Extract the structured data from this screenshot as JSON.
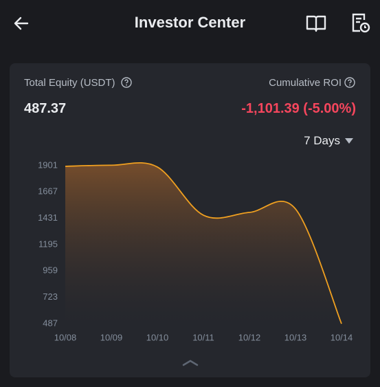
{
  "header": {
    "title": "Investor Center"
  },
  "summary": {
    "equity_label": "Total Equity (USDT)",
    "equity_value": "487.37",
    "roi_label": "Cumulative ROI",
    "roi_value": "-1,101.39 (-5.00%)",
    "period": "7 Days"
  },
  "chart_data": {
    "type": "line",
    "categories": [
      "10/08",
      "10/09",
      "10/10",
      "10/11",
      "10/12",
      "10/13",
      "10/14"
    ],
    "values": [
      1895,
      1905,
      1889,
      1458,
      1483,
      1514,
      487
    ],
    "color": "#f0a020",
    "ylim": [
      487,
      1901
    ],
    "yticks": [
      487,
      723,
      959,
      1195,
      1431,
      1667,
      1901
    ]
  }
}
